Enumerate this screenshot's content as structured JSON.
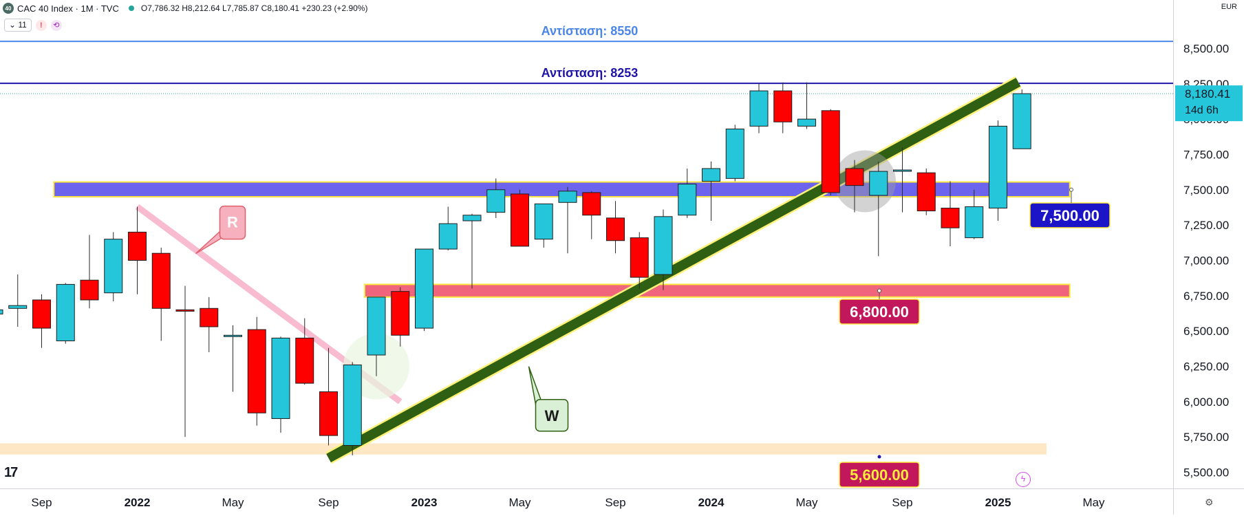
{
  "header": {
    "badge": "40",
    "symbol_text": "CAC 40 Index · 1M · TVC",
    "ohlc_text": "O7,786.32  H8,212.64  L7,785.87  C8,180.41  +230.23 (+2.90%)",
    "interval_pill": "⌄ 11",
    "warn_icon": "!",
    "sync_icon": "⟲"
  },
  "currency": "EUR",
  "price_label": {
    "value": "8,180.41",
    "countdown": "14d 6h"
  },
  "chart_data": {
    "type": "candlestick",
    "title": "CAC 40 Index · 1M · TVC",
    "ylim": [
      5400,
      8720
    ],
    "y_ticks": [
      5500,
      5750,
      6000,
      6250,
      6500,
      6750,
      7000,
      7250,
      7500,
      7750,
      8000,
      8250,
      8500
    ],
    "y_tick_labels": [
      "5,500.00",
      "5,750.00",
      "6,000.00",
      "6,250.00",
      "6,500.00",
      "6,750.00",
      "7,000.00",
      "7,250.00",
      "7,500.00",
      "7,750.00",
      "8,000.00",
      "8,250.00",
      "8,500.00"
    ],
    "x_ticks": [
      {
        "date": "2021-09",
        "label": "Sep"
      },
      {
        "date": "2022-01",
        "label": "2022"
      },
      {
        "date": "2022-05",
        "label": "May"
      },
      {
        "date": "2022-09",
        "label": "Sep"
      },
      {
        "date": "2023-01",
        "label": "2023"
      },
      {
        "date": "2023-05",
        "label": "May"
      },
      {
        "date": "2023-09",
        "label": "Sep"
      },
      {
        "date": "2024-01",
        "label": "2024"
      },
      {
        "date": "2024-05",
        "label": "May"
      },
      {
        "date": "2024-09",
        "label": "Sep"
      },
      {
        "date": "2025-01",
        "label": "2025"
      },
      {
        "date": "2025-05",
        "label": "May"
      }
    ],
    "colors": {
      "up": "#26c6da",
      "down": "#ff0000",
      "outline": "#1e1e1e"
    },
    "candles": [
      {
        "date": "2021-05",
        "o": 6390,
        "h": 6460,
        "l": 6330,
        "c": 6430
      },
      {
        "date": "2021-06",
        "o": 6450,
        "h": 6590,
        "l": 6380,
        "c": 6520
      },
      {
        "date": "2021-07",
        "o": 6620,
        "h": 6770,
        "l": 6560,
        "c": 6650
      },
      {
        "date": "2021-08",
        "o": 6660,
        "h": 6900,
        "l": 6530,
        "c": 6680
      },
      {
        "date": "2021-09",
        "o": 6720,
        "h": 6760,
        "l": 6380,
        "c": 6520
      },
      {
        "date": "2021-10",
        "o": 6430,
        "h": 6840,
        "l": 6410,
        "c": 6830
      },
      {
        "date": "2021-11",
        "o": 6860,
        "h": 7180,
        "l": 6660,
        "c": 6720
      },
      {
        "date": "2021-12",
        "o": 6770,
        "h": 7200,
        "l": 6710,
        "c": 7150
      },
      {
        "date": "2022-01",
        "o": 7200,
        "h": 7380,
        "l": 6760,
        "c": 7000
      },
      {
        "date": "2022-02",
        "o": 7050,
        "h": 7090,
        "l": 6430,
        "c": 6660
      },
      {
        "date": "2022-03",
        "o": 6650,
        "h": 6820,
        "l": 5750,
        "c": 6640
      },
      {
        "date": "2022-04",
        "o": 6660,
        "h": 6740,
        "l": 6350,
        "c": 6530
      },
      {
        "date": "2022-05",
        "o": 6470,
        "h": 6540,
        "l": 6070,
        "c": 6470
      },
      {
        "date": "2022-06",
        "o": 6510,
        "h": 6600,
        "l": 5830,
        "c": 5920
      },
      {
        "date": "2022-07",
        "o": 5880,
        "h": 6460,
        "l": 5780,
        "c": 6450
      },
      {
        "date": "2022-08",
        "o": 6450,
        "h": 6590,
        "l": 6120,
        "c": 6130
      },
      {
        "date": "2022-09",
        "o": 6070,
        "h": 6380,
        "l": 5690,
        "c": 5760
      },
      {
        "date": "2022-10",
        "o": 5690,
        "h": 6280,
        "l": 5620,
        "c": 6260
      },
      {
        "date": "2022-11",
        "o": 6330,
        "h": 6740,
        "l": 6180,
        "c": 6740
      },
      {
        "date": "2022-12",
        "o": 6780,
        "h": 6810,
        "l": 6390,
        "c": 6470
      },
      {
        "date": "2023-01",
        "o": 6520,
        "h": 7080,
        "l": 6500,
        "c": 7080
      },
      {
        "date": "2023-02",
        "o": 7080,
        "h": 7380,
        "l": 7070,
        "c": 7260
      },
      {
        "date": "2023-03",
        "o": 7280,
        "h": 7330,
        "l": 6800,
        "c": 7320
      },
      {
        "date": "2023-04",
        "o": 7340,
        "h": 7580,
        "l": 7300,
        "c": 7500
      },
      {
        "date": "2023-05",
        "o": 7470,
        "h": 7500,
        "l": 7100,
        "c": 7100
      },
      {
        "date": "2023-06",
        "o": 7150,
        "h": 7400,
        "l": 7090,
        "c": 7400
      },
      {
        "date": "2023-07",
        "o": 7410,
        "h": 7520,
        "l": 7050,
        "c": 7490
      },
      {
        "date": "2023-08",
        "o": 7480,
        "h": 7490,
        "l": 7150,
        "c": 7320
      },
      {
        "date": "2023-09",
        "o": 7300,
        "h": 7420,
        "l": 7050,
        "c": 7140
      },
      {
        "date": "2023-10",
        "o": 7160,
        "h": 7200,
        "l": 6800,
        "c": 6880
      },
      {
        "date": "2023-11",
        "o": 6900,
        "h": 7360,
        "l": 6790,
        "c": 7310
      },
      {
        "date": "2023-12",
        "o": 7320,
        "h": 7650,
        "l": 7300,
        "c": 7540
      },
      {
        "date": "2024-01",
        "o": 7560,
        "h": 7700,
        "l": 7280,
        "c": 7650
      },
      {
        "date": "2024-02",
        "o": 7580,
        "h": 7960,
        "l": 7560,
        "c": 7930
      },
      {
        "date": "2024-03",
        "o": 7950,
        "h": 8250,
        "l": 7900,
        "c": 8200
      },
      {
        "date": "2024-04",
        "o": 8200,
        "h": 8260,
        "l": 7900,
        "c": 7980
      },
      {
        "date": "2024-05",
        "o": 7950,
        "h": 8260,
        "l": 7930,
        "c": 8000
      },
      {
        "date": "2024-06",
        "o": 8060,
        "h": 8070,
        "l": 7460,
        "c": 7480
      },
      {
        "date": "2024-07",
        "o": 7650,
        "h": 7710,
        "l": 7340,
        "c": 7530
      },
      {
        "date": "2024-08",
        "o": 7460,
        "h": 7700,
        "l": 7030,
        "c": 7630
      },
      {
        "date": "2024-09",
        "o": 7640,
        "h": 7800,
        "l": 7340,
        "c": 7640
      },
      {
        "date": "2024-10",
        "o": 7620,
        "h": 7650,
        "l": 7320,
        "c": 7350
      },
      {
        "date": "2024-11",
        "o": 7370,
        "h": 7560,
        "l": 7100,
        "c": 7230
      },
      {
        "date": "2024-12",
        "o": 7160,
        "h": 7500,
        "l": 7150,
        "c": 7380
      },
      {
        "date": "2025-01",
        "o": 7370,
        "h": 7990,
        "l": 7280,
        "c": 7950
      },
      {
        "date": "2025-02",
        "o": 7790,
        "h": 8210,
        "l": 7790,
        "c": 8180
      }
    ],
    "horizontal_lines": [
      {
        "name": "resistance-8550",
        "value": 8550,
        "label": "Αντίσταση:  8550",
        "color": "#4a86e8"
      },
      {
        "name": "resistance-8253",
        "value": 8253,
        "label": "Αντίσταση:  8253",
        "color": "#1f14a8"
      }
    ],
    "zones": [
      {
        "name": "zone-7500",
        "from": 7450,
        "to": 7555,
        "start": "2021-10",
        "end": "2025-04",
        "fill": "#6d64ee",
        "label": "7,500.00",
        "label_bg": "#1c15c8"
      },
      {
        "name": "zone-6800",
        "from": 6740,
        "to": 6830,
        "start": "2022-11",
        "end": "2025-04",
        "fill": "#f0657c",
        "label": "6,800.00",
        "label_bg": "#c2185b"
      },
      {
        "name": "zone-5600",
        "from": 5630,
        "to": 5700,
        "start": "2021-03",
        "end": "2025-03",
        "fill": "#fde7c4",
        "label": "5,600.00",
        "label_bg": "#c2185b"
      }
    ],
    "trendlines": [
      {
        "name": "support-trendline",
        "from": {
          "date": "2022-09",
          "value": 5600
        },
        "to": {
          "date": "2025-03",
          "value": 8262
        },
        "color": "#2e5f12",
        "label": "W"
      },
      {
        "name": "resistance-trendline",
        "from": {
          "date": "2022-01",
          "value": 7380
        },
        "to": {
          "date": "2022-12",
          "value": 6000
        },
        "color": "#f8bbd0",
        "label": "R"
      }
    ]
  }
}
